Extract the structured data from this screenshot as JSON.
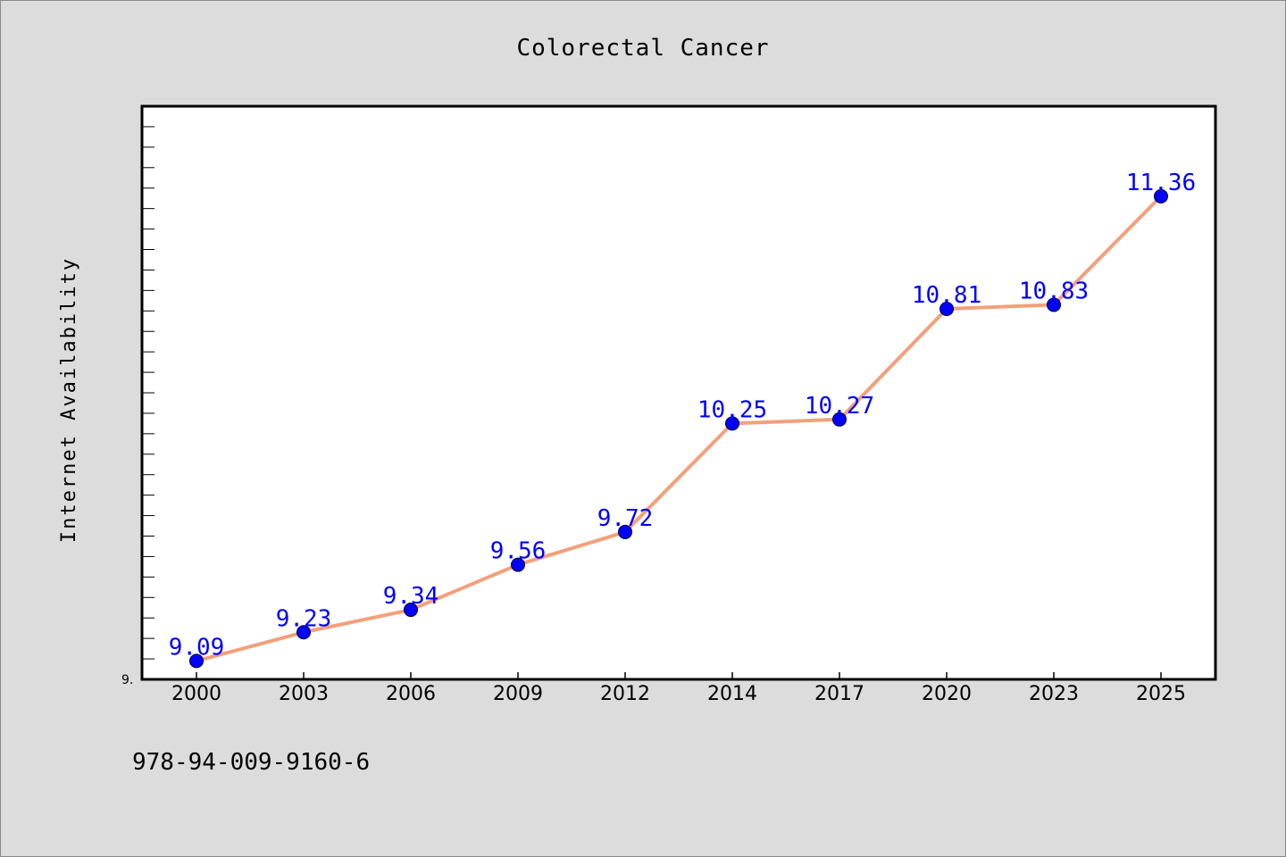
{
  "chart_data": {
    "type": "line",
    "title": "Colorectal Cancer",
    "xlabel": "",
    "ylabel": "Internet Availability",
    "categories": [
      "2000",
      "2003",
      "2006",
      "2009",
      "2012",
      "2014",
      "2017",
      "2020",
      "2023",
      "2025"
    ],
    "series": [
      {
        "values": [
          9.09,
          9.23,
          9.34,
          9.56,
          9.72,
          10.25,
          10.27,
          10.81,
          10.83,
          11.36
        ],
        "data_labels": [
          "9.09",
          "9.23",
          "9.34",
          "9.56",
          "9.72",
          "10.25",
          "10.27",
          "10.81",
          "10.83",
          "11.36"
        ]
      }
    ],
    "ylim": [
      9.0,
      11.8
    ],
    "y_tick_label": "9.",
    "grid": false,
    "legend": "none",
    "colors": {
      "line": "#f4a07a",
      "marker": "#0000ff",
      "label": "#0000ff",
      "background": "#dcdcdc",
      "plot_background": "#ffffff"
    }
  },
  "footer": {
    "isbn": "978-94-009-9160-6"
  }
}
